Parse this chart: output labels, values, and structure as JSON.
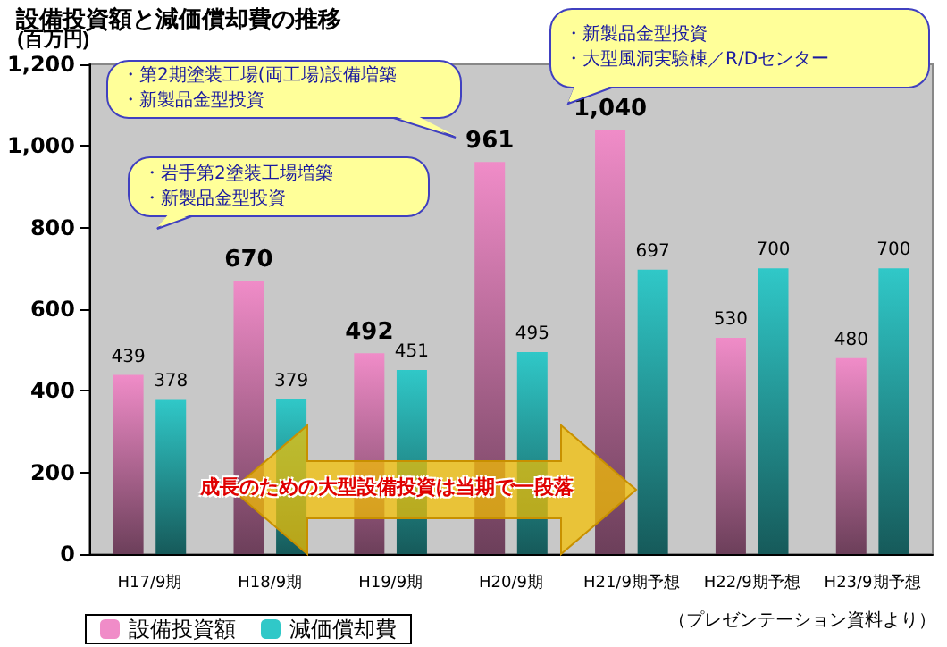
{
  "chart_data": {
    "type": "bar",
    "title": "設備投資額と減価償却費の推移",
    "ylabel": "(百万円)",
    "categories": [
      "H17/9期",
      "H18/9期",
      "H19/9期",
      "H20/9期",
      "H21/9期予想",
      "H22/9期予想",
      "H23/9期予想"
    ],
    "series": [
      {
        "name": "設備投資額",
        "color": "#f08cc8",
        "values": [
          439,
          670,
          492,
          961,
          1040,
          530,
          480
        ],
        "value_labels": [
          "439",
          "670",
          "492",
          "961",
          "1,040",
          "530",
          "480"
        ]
      },
      {
        "name": "減価償却費",
        "color": "#30c8c8",
        "values": [
          378,
          379,
          451,
          495,
          697,
          700,
          700
        ],
        "value_labels": [
          "378",
          "379",
          "451",
          "495",
          "697",
          "700",
          "700"
        ]
      }
    ],
    "ylim": [
      0,
      1200
    ],
    "yticks": [
      0,
      {
        "value": 200,
        "label": "200"
      },
      {
        "value": 400,
        "label": "400"
      },
      {
        "value": 600,
        "label": "600"
      },
      {
        "value": 800,
        "label": "800"
      },
      {
        "value": 1000,
        "label": "1,000"
      },
      {
        "value": 1200,
        "label": "1,200"
      }
    ],
    "grid": false,
    "legend": "bottom left",
    "annotations": [
      "・第2期塗装工場(両工場)設備増築",
      "・新製品金型投資",
      "・岩手第2塗装工場増築",
      "・新製品金型投資",
      "・新製品金型投資",
      "・大型風洞実験棟／R/Dセンター",
      "成長のための大型設備投資は当期で一段落",
      "（プレゼンテーション資料より）"
    ]
  }
}
